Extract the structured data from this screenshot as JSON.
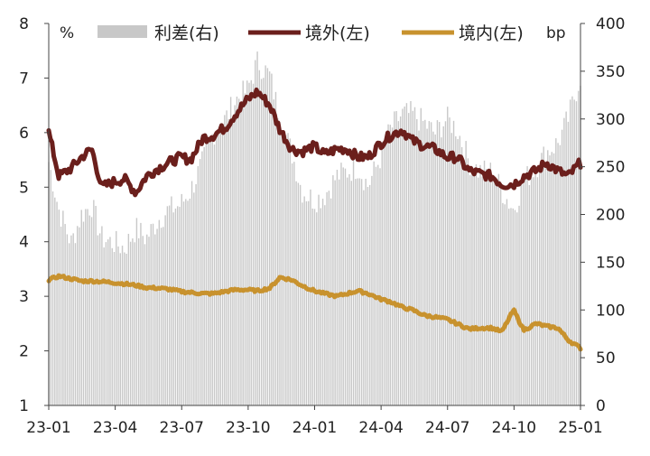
{
  "chart_data": {
    "type": "line",
    "left_unit": "%",
    "right_unit": "bp",
    "x_tick_labels": [
      "23-01",
      "23-04",
      "23-07",
      "23-10",
      "24-01",
      "24-04",
      "24-07",
      "24-10",
      "25-01"
    ],
    "left_ticks": [
      "1",
      "2",
      "3",
      "4",
      "5",
      "6",
      "7",
      "8"
    ],
    "right_ticks": [
      "0",
      "50",
      "100",
      "150",
      "200",
      "250",
      "300",
      "350",
      "400"
    ],
    "ylim_left": [
      1,
      8
    ],
    "ylim_right": [
      0,
      400
    ],
    "x_range": [
      "2023-01-01",
      "2025-01-01"
    ],
    "legend": [
      "利差(右)",
      "境外(左)",
      "境内(左)"
    ],
    "colors": {
      "spread": "#c8c8c8",
      "offshore": "#6b1f1c",
      "onshore": "#c8922e"
    },
    "series": [
      {
        "name": "利差(右)",
        "axis": "right",
        "style": "bar",
        "x": [
          "2023-01-01",
          "2023-01-15",
          "2023-02-01",
          "2023-02-15",
          "2023-03-01",
          "2023-03-15",
          "2023-04-01",
          "2023-04-15",
          "2023-05-01",
          "2023-05-15",
          "2023-06-01",
          "2023-06-15",
          "2023-07-01",
          "2023-07-15",
          "2023-08-01",
          "2023-08-15",
          "2023-09-01",
          "2023-09-15",
          "2023-10-01",
          "2023-10-15",
          "2023-11-01",
          "2023-11-15",
          "2023-12-01",
          "2023-12-15",
          "2024-01-01",
          "2024-01-15",
          "2024-02-01",
          "2024-02-15",
          "2024-03-01",
          "2024-03-15",
          "2024-04-01",
          "2024-04-15",
          "2024-05-01",
          "2024-05-15",
          "2024-06-01",
          "2024-06-15",
          "2024-07-01",
          "2024-07-15",
          "2024-08-01",
          "2024-08-15",
          "2024-09-01",
          "2024-09-15",
          "2024-10-01",
          "2024-10-15",
          "2024-11-01",
          "2024-11-15",
          "2024-12-01",
          "2024-12-15",
          "2025-01-01"
        ],
        "values": [
          255,
          205,
          170,
          200,
          210,
          175,
          170,
          165,
          185,
          175,
          195,
          205,
          210,
          225,
          255,
          285,
          300,
          320,
          330,
          360,
          345,
          300,
          265,
          225,
          215,
          220,
          240,
          245,
          250,
          230,
          260,
          290,
          305,
          305,
          295,
          285,
          300,
          290,
          255,
          245,
          245,
          225,
          205,
          235,
          250,
          265,
          275,
          300,
          345
        ]
      },
      {
        "name": "境外(左)",
        "axis": "left",
        "style": "line",
        "x": [
          "2023-01-01",
          "2023-01-15",
          "2023-02-01",
          "2023-02-15",
          "2023-03-01",
          "2023-03-15",
          "2023-04-01",
          "2023-04-15",
          "2023-05-01",
          "2023-05-15",
          "2023-06-01",
          "2023-06-15",
          "2023-07-01",
          "2023-07-15",
          "2023-08-01",
          "2023-08-15",
          "2023-09-01",
          "2023-09-15",
          "2023-10-01",
          "2023-10-15",
          "2023-11-01",
          "2023-11-15",
          "2023-12-01",
          "2023-12-15",
          "2024-01-01",
          "2024-01-15",
          "2024-02-01",
          "2024-02-15",
          "2024-03-01",
          "2024-03-15",
          "2024-04-01",
          "2024-04-15",
          "2024-05-01",
          "2024-05-15",
          "2024-06-01",
          "2024-06-15",
          "2024-07-01",
          "2024-07-15",
          "2024-08-01",
          "2024-08-15",
          "2024-09-01",
          "2024-09-15",
          "2024-10-01",
          "2024-10-15",
          "2024-11-01",
          "2024-11-15",
          "2024-12-01",
          "2024-12-15",
          "2025-01-01"
        ],
        "values": [
          6.0,
          5.2,
          5.35,
          5.55,
          5.7,
          5.0,
          5.1,
          5.15,
          4.9,
          5.2,
          5.35,
          5.45,
          5.55,
          5.5,
          5.9,
          5.95,
          6.1,
          6.35,
          6.6,
          6.75,
          6.5,
          6.05,
          5.7,
          5.65,
          5.75,
          5.6,
          5.7,
          5.7,
          5.55,
          5.55,
          5.8,
          5.95,
          6.05,
          5.85,
          5.75,
          5.7,
          5.55,
          5.55,
          5.3,
          5.25,
          5.2,
          5.05,
          5.05,
          5.2,
          5.3,
          5.45,
          5.3,
          5.2,
          5.45
        ]
      },
      {
        "name": "境内(左)",
        "axis": "left",
        "style": "line",
        "x": [
          "2023-01-01",
          "2023-01-15",
          "2023-02-01",
          "2023-02-15",
          "2023-03-01",
          "2023-03-15",
          "2023-04-01",
          "2023-04-15",
          "2023-05-01",
          "2023-05-15",
          "2023-06-01",
          "2023-06-15",
          "2023-07-01",
          "2023-07-15",
          "2023-08-01",
          "2023-08-15",
          "2023-09-01",
          "2023-09-15",
          "2023-10-01",
          "2023-10-15",
          "2023-11-01",
          "2023-11-15",
          "2023-12-01",
          "2023-12-15",
          "2024-01-01",
          "2024-01-15",
          "2024-02-01",
          "2024-02-15",
          "2024-03-01",
          "2024-03-15",
          "2024-04-01",
          "2024-04-15",
          "2024-05-01",
          "2024-05-15",
          "2024-06-01",
          "2024-06-15",
          "2024-07-01",
          "2024-07-15",
          "2024-08-01",
          "2024-08-15",
          "2024-09-01",
          "2024-09-15",
          "2024-10-01",
          "2024-10-15",
          "2024-11-01",
          "2024-11-15",
          "2024-12-01",
          "2024-12-15",
          "2025-01-01"
        ],
        "values": [
          3.3,
          3.37,
          3.32,
          3.28,
          3.28,
          3.27,
          3.25,
          3.23,
          3.2,
          3.16,
          3.15,
          3.13,
          3.09,
          3.07,
          3.05,
          3.05,
          3.09,
          3.12,
          3.12,
          3.1,
          3.15,
          3.35,
          3.3,
          3.2,
          3.1,
          3.05,
          3.0,
          3.05,
          3.1,
          3.05,
          2.95,
          2.9,
          2.8,
          2.75,
          2.65,
          2.62,
          2.58,
          2.5,
          2.4,
          2.42,
          2.42,
          2.35,
          2.75,
          2.38,
          2.5,
          2.45,
          2.42,
          2.2,
          2.05
        ]
      }
    ]
  }
}
